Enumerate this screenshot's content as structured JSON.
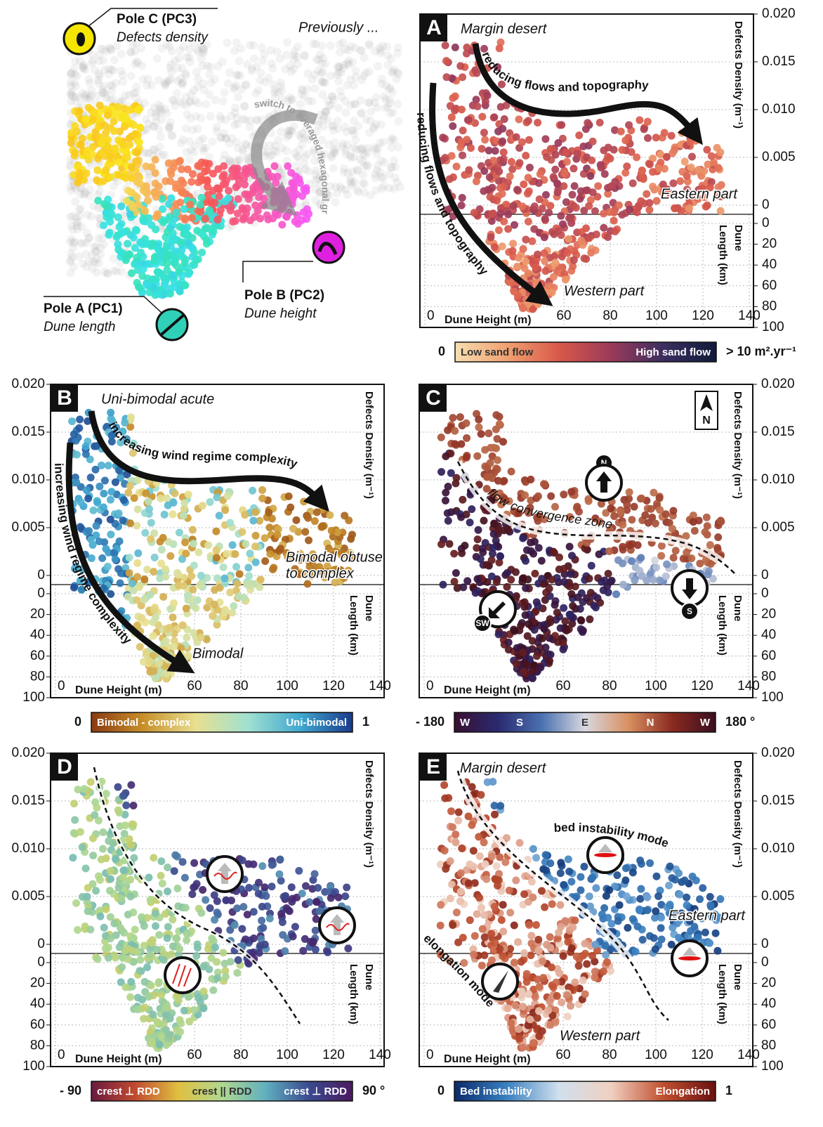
{
  "overview": {
    "pole_c": {
      "name": "Pole C (PC3)",
      "desc": "Defects density"
    },
    "pole_b": {
      "name": "Pole B (PC2)",
      "desc": "Dune height"
    },
    "pole_a": {
      "name": "Pole A (PC1)",
      "desc": "Dune length"
    },
    "previously": "Previously ...",
    "switch_note": "switch to averaged hexagonal grid"
  },
  "axes": {
    "density_title": "Defects Density (m⁻¹)",
    "length_title": "Length (km)",
    "length_title_2": "Dune",
    "height_title": "Dune Height (m)",
    "density_ticks": [
      {
        "value": 0.02,
        "label": "0.020"
      },
      0.015,
      {
        "value": 0.01,
        "label": "0.010"
      },
      0.005,
      0
    ],
    "density_lim": [
      0,
      0.02
    ],
    "length_ticks": [
      0,
      20,
      40,
      60,
      80,
      100
    ],
    "length_lim": [
      0,
      100
    ],
    "height_ticks": [
      0,
      60,
      80,
      100,
      120,
      140
    ]
  },
  "panels": [
    {
      "label": "A",
      "annotations": [
        "Margin desert",
        "reducing flows and topography",
        "reducing flows and topography",
        "Eastern part",
        "Western part"
      ],
      "colorbar": {
        "left": "0",
        "right": "> 10 m².yr⁻¹",
        "inner": [
          "Low sand flow",
          "High sand flow"
        ],
        "colors": [
          "#f5deb0",
          "#f0a070",
          "#d8584a",
          "#9a3a5a",
          "#3a2e60",
          "#101c3a"
        ]
      }
    },
    {
      "label": "B",
      "annotations": [
        "Uni-bimodal acute",
        "increasing wind regime complexity",
        "increasing wind regime complexity",
        "Bimodal obtuse",
        "to complex",
        "Bimodal"
      ],
      "colorbar": {
        "left": "0",
        "right": "1",
        "inner": [
          "Bimodal - complex",
          "Uni-bimodal"
        ],
        "colors": [
          "#8a3a10",
          "#c8902a",
          "#e8e090",
          "#a0e0d0",
          "#40a8d0",
          "#1a3a8a"
        ]
      }
    },
    {
      "label": "C",
      "annotations": [
        "flow convergence zone",
        "N",
        "S",
        "SW",
        "N"
      ],
      "colorbar": {
        "left": "- 180",
        "right": "180 °",
        "inner": [
          "W",
          "S",
          "E",
          "N",
          "W"
        ],
        "colors": [
          "#3a0f30",
          "#2a2a70",
          "#4a70b0",
          "#d8d8e0",
          "#d89060",
          "#8a2a20",
          "#3a0f20"
        ]
      }
    },
    {
      "label": "D",
      "annotations": [],
      "colorbar": {
        "left": "- 90",
        "right": "90 °",
        "inner": [
          "crest ⊥ RDD",
          "crest || RDD",
          "crest ⊥ RDD"
        ],
        "colors": [
          "#6a1a40",
          "#c04a30",
          "#e0c040",
          "#b0d890",
          "#60b0c0",
          "#3a4a90",
          "#4a1a60"
        ]
      }
    },
    {
      "label": "E",
      "annotations": [
        "Margin desert",
        "bed instability mode",
        "Eastern part",
        "elongation mode",
        "Western part"
      ],
      "colorbar": {
        "left": "0",
        "right": "1",
        "inner": [
          "Bed instability",
          "Elongation"
        ],
        "colors": [
          "#0a2a6a",
          "#3a80c0",
          "#d0e0ee",
          "#f0d0c0",
          "#c05030",
          "#6a1010"
        ]
      }
    }
  ]
}
